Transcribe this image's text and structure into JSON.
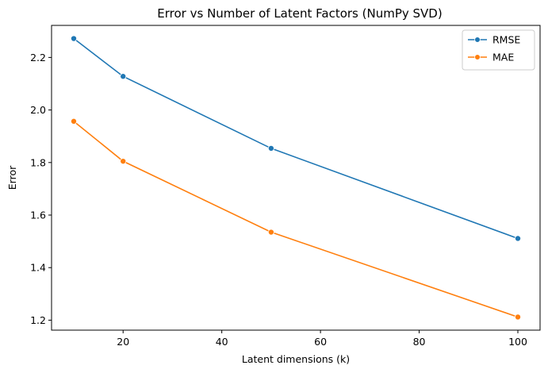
{
  "chart_data": {
    "type": "line",
    "title": "Error vs Number of Latent Factors (NumPy SVD)",
    "xlabel": "Latent dimensions (k)",
    "ylabel": "Error",
    "x": [
      10,
      20,
      50,
      100
    ],
    "series": [
      {
        "name": "RMSE",
        "color": "#1f77b4",
        "values": [
          2.272,
          2.128,
          1.854,
          1.511
        ]
      },
      {
        "name": "MAE",
        "color": "#ff7f0e",
        "values": [
          1.957,
          1.805,
          1.535,
          1.212
        ]
      }
    ],
    "xlim": [
      5.5,
      104.5
    ],
    "ylim": [
      1.162,
      2.322
    ],
    "xticks": [
      20,
      40,
      60,
      80,
      100
    ],
    "yticks": [
      1.2,
      1.4,
      1.6,
      1.8,
      2.0,
      2.2
    ],
    "xtick_labels": [
      "20",
      "40",
      "60",
      "80",
      "100"
    ],
    "ytick_labels": [
      "1.2",
      "1.4",
      "1.6",
      "1.8",
      "2.0",
      "2.2"
    ],
    "grid": false,
    "legend_position": "top-right"
  }
}
